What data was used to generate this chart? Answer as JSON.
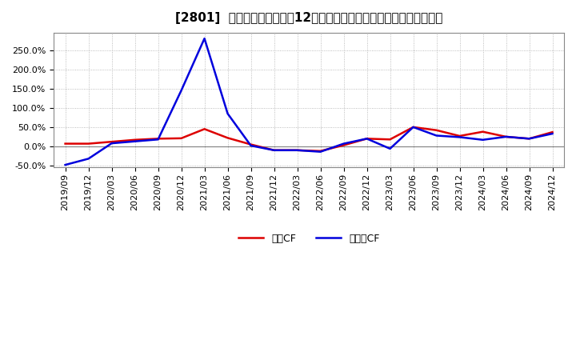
{
  "title": "[2801]  キャッシュフローの12か月移動合計の対前年同期増減率の推移",
  "background_color": "#ffffff",
  "plot_background_color": "#ffffff",
  "grid_color": "#aaaaaa",
  "x_labels": [
    "2019/09",
    "2019/12",
    "2020/03",
    "2020/06",
    "2020/09",
    "2020/12",
    "2021/03",
    "2021/06",
    "2021/09",
    "2021/12",
    "2022/03",
    "2022/06",
    "2022/09",
    "2022/12",
    "2023/03",
    "2023/06",
    "2023/09",
    "2023/12",
    "2024/03",
    "2024/06",
    "2024/09",
    "2024/12"
  ],
  "eigyo_cf": [
    0.07,
    0.07,
    0.12,
    0.17,
    0.2,
    0.21,
    0.45,
    0.22,
    0.05,
    -0.1,
    -0.1,
    -0.12,
    0.03,
    0.2,
    0.18,
    0.5,
    0.42,
    0.27,
    0.38,
    0.25,
    0.2,
    0.37
  ],
  "free_cf": [
    -0.48,
    -0.32,
    0.08,
    0.13,
    0.18,
    1.45,
    2.8,
    0.85,
    0.02,
    -0.1,
    -0.1,
    -0.14,
    0.07,
    0.2,
    -0.06,
    0.5,
    0.28,
    0.24,
    0.17,
    0.25,
    0.2,
    0.33
  ],
  "eigyo_color": "#dd0000",
  "free_color": "#0000dd",
  "ylim_min": -0.55,
  "ylim_max": 2.95,
  "yticks": [
    -0.5,
    0.0,
    0.5,
    1.0,
    1.5,
    2.0,
    2.5
  ],
  "legend_eigyo": "営業CF",
  "legend_free": "フリーCF",
  "title_fontsize": 11,
  "tick_fontsize": 8,
  "line_width": 1.8
}
